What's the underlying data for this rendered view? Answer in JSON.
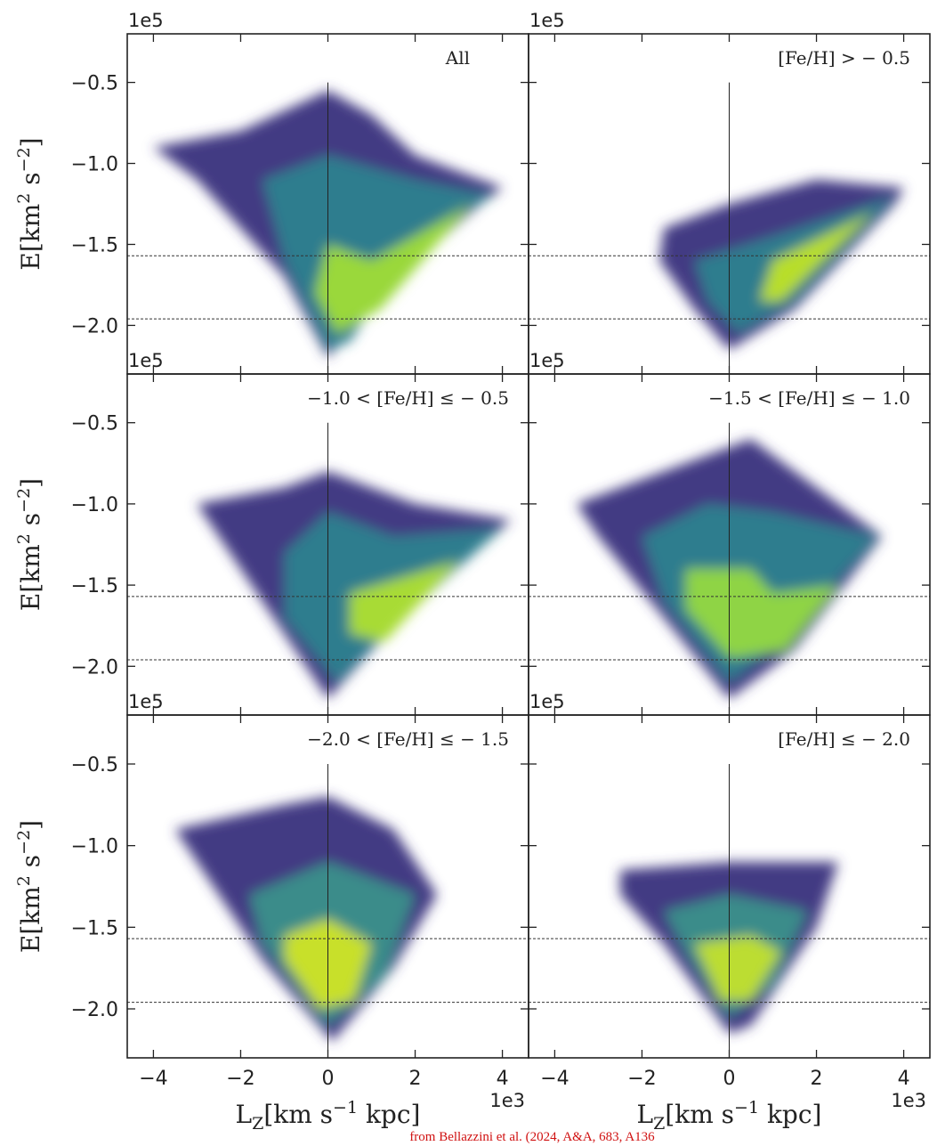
{
  "chart_data": [
    {
      "type": "heatmap",
      "label": "All",
      "y_offset": "1e5",
      "ylabel": {
        "main": "E[km",
        "sup1": "2",
        "mid": " s",
        "sup2": "−2",
        "end": "]"
      },
      "xlim": [
        -4.6,
        4.6
      ],
      "ylim": [
        -2.3,
        -0.2
      ],
      "xticks": [
        -4,
        -2,
        0,
        2,
        4
      ],
      "yticks": [
        -0.5,
        -1,
        -1.5,
        -2
      ],
      "yticklabels": [
        "−0.5",
        "−1.0",
        "−1.5",
        "−2.0"
      ],
      "vline": 0,
      "hlines": [
        -1.57,
        -1.96
      ],
      "regions": [
        {
          "color": "#433a83",
          "points": [
            [
              -4,
              -0.9
            ],
            [
              -2,
              -0.8
            ],
            [
              0,
              -0.55
            ],
            [
              1,
              -0.7
            ],
            [
              2,
              -0.95
            ],
            [
              4,
              -1.15
            ],
            [
              3.5,
              -1.25
            ],
            [
              1,
              -1.85
            ],
            [
              0,
              -2.2
            ],
            [
              -1,
              -1.7
            ],
            [
              -3,
              -1.1
            ]
          ]
        },
        {
          "color": "#2e7d8e",
          "points": [
            [
              -1.5,
              -1.1
            ],
            [
              0,
              -0.95
            ],
            [
              2,
              -1.1
            ],
            [
              3.8,
              -1.2
            ],
            [
              2,
              -1.45
            ],
            [
              0.5,
              -2.1
            ],
            [
              0,
              -2.15
            ],
            [
              -1,
              -1.6
            ]
          ]
        },
        {
          "color": "#9ad83a",
          "points": [
            [
              0,
              -1.5
            ],
            [
              1,
              -1.6
            ],
            [
              3.3,
              -1.25
            ],
            [
              1.2,
              -1.9
            ],
            [
              0.2,
              -2.05
            ],
            [
              -0.3,
              -1.8
            ]
          ]
        }
      ]
    },
    {
      "type": "heatmap",
      "label": "[Fe/H] > − 0.5",
      "y_offset": "1e5",
      "xlim": [
        -4.6,
        4.6
      ],
      "ylim": [
        -2.3,
        -0.2
      ],
      "xticks": [
        -4,
        -2,
        0,
        2,
        4
      ],
      "yticks": [
        -0.5,
        -1,
        -1.5,
        -2
      ],
      "vline": 0,
      "hlines": [
        -1.57,
        -1.96
      ],
      "regions": [
        {
          "color": "#433a83",
          "points": [
            [
              -1.5,
              -1.4
            ],
            [
              0,
              -1.25
            ],
            [
              2,
              -1.1
            ],
            [
              4,
              -1.15
            ],
            [
              3.8,
              -1.25
            ],
            [
              1.5,
              -1.9
            ],
            [
              0,
              -2.15
            ],
            [
              -0.8,
              -1.9
            ],
            [
              -1.6,
              -1.6
            ]
          ]
        },
        {
          "color": "#2e7d8e",
          "points": [
            [
              -0.8,
              -1.6
            ],
            [
              1,
              -1.45
            ],
            [
              3.8,
              -1.2
            ],
            [
              1.5,
              -1.85
            ],
            [
              0.2,
              -2.05
            ],
            [
              -0.5,
              -1.85
            ]
          ]
        },
        {
          "color": "#b8de29",
          "points": [
            [
              1,
              -1.6
            ],
            [
              3.3,
              -1.3
            ],
            [
              1.2,
              -1.85
            ],
            [
              0.7,
              -1.85
            ]
          ]
        }
      ]
    },
    {
      "type": "heatmap",
      "label": "−1.0 < [Fe/H] ≤ − 0.5",
      "y_offset": "1e5",
      "ylabel": {
        "main": "E[km",
        "sup1": "2",
        "mid": " s",
        "sup2": "−2",
        "end": "]"
      },
      "xlim": [
        -4.6,
        4.6
      ],
      "ylim": [
        -2.3,
        -0.2
      ],
      "xticks": [
        -4,
        -2,
        0,
        2,
        4
      ],
      "yticks": [
        -0.5,
        -1,
        -1.5,
        -2
      ],
      "yticklabels": [
        "−0.5",
        "−1.0",
        "−1.5",
        "−2.0"
      ],
      "vline": 0,
      "hlines": [
        -1.57,
        -1.96
      ],
      "regions": [
        {
          "color": "#433a83",
          "points": [
            [
              -3,
              -1.0
            ],
            [
              -1,
              -0.9
            ],
            [
              0,
              -0.8
            ],
            [
              2,
              -1.0
            ],
            [
              4.2,
              -1.1
            ],
            [
              3.5,
              -1.25
            ],
            [
              1,
              -1.9
            ],
            [
              0,
              -2.2
            ],
            [
              -1.5,
              -1.6
            ],
            [
              -2,
              -1.4
            ]
          ]
        },
        {
          "color": "#2e7d8e",
          "points": [
            [
              -1,
              -1.3
            ],
            [
              0,
              -1.05
            ],
            [
              1.5,
              -1.2
            ],
            [
              4,
              -1.15
            ],
            [
              1.5,
              -1.75
            ],
            [
              0.2,
              -2.1
            ],
            [
              -1,
              -1.7
            ]
          ]
        },
        {
          "color": "#a8db34",
          "points": [
            [
              0.5,
              -1.55
            ],
            [
              3,
              -1.35
            ],
            [
              1.3,
              -1.85
            ],
            [
              0.5,
              -1.8
            ]
          ]
        }
      ]
    },
    {
      "type": "heatmap",
      "label": "−1.5 < [Fe/H] ≤ − 1.0",
      "y_offset": "1e5",
      "xlim": [
        -4.6,
        4.6
      ],
      "ylim": [
        -2.3,
        -0.2
      ],
      "xticks": [
        -4,
        -2,
        0,
        2,
        4
      ],
      "yticks": [
        -0.5,
        -1,
        -1.5,
        -2
      ],
      "vline": 0,
      "hlines": [
        -1.57,
        -1.96
      ],
      "regions": [
        {
          "color": "#433a83",
          "points": [
            [
              -3.5,
              -1.0
            ],
            [
              -1,
              -0.75
            ],
            [
              0.5,
              -0.6
            ],
            [
              2,
              -0.9
            ],
            [
              3.5,
              -1.2
            ],
            [
              1.5,
              -1.9
            ],
            [
              0,
              -2.2
            ],
            [
              -1.8,
              -1.6
            ],
            [
              -3,
              -1.2
            ]
          ]
        },
        {
          "color": "#2e7d8e",
          "points": [
            [
              -2,
              -1.2
            ],
            [
              -0.5,
              -1.0
            ],
            [
              1,
              -1.05
            ],
            [
              3.4,
              -1.2
            ],
            [
              1.2,
              -1.85
            ],
            [
              0,
              -2.1
            ],
            [
              -1.5,
              -1.6
            ]
          ]
        },
        {
          "color": "#8fd444",
          "points": [
            [
              -1,
              -1.4
            ],
            [
              0.5,
              -1.4
            ],
            [
              1,
              -1.55
            ],
            [
              2.5,
              -1.5
            ],
            [
              1.3,
              -1.9
            ],
            [
              0,
              -1.95
            ],
            [
              -1,
              -1.65
            ]
          ]
        }
      ]
    },
    {
      "type": "heatmap",
      "label": "−2.0 < [Fe/H] ≤ − 1.5",
      "y_offset": "1e5",
      "x_offset": "1e3",
      "ylabel": {
        "main": "E[km",
        "sup1": "2",
        "mid": " s",
        "sup2": "−2",
        "end": "]"
      },
      "xlabel": {
        "main": "L",
        "sub": "Z",
        "rest": "[km s",
        "sup": "−1",
        "end": " kpc]"
      },
      "xlim": [
        -4.6,
        4.6
      ],
      "ylim": [
        -2.3,
        -0.2
      ],
      "xticks": [
        -4,
        -2,
        0,
        2,
        4
      ],
      "yticks": [
        -0.5,
        -1,
        -1.5,
        -2
      ],
      "xticklabels": [
        "−4",
        "−2",
        "0",
        "2",
        "4"
      ],
      "yticklabels": [
        "−0.5",
        "−1.0",
        "−1.5",
        "−2.0"
      ],
      "vline": 0,
      "hlines": [
        -1.57,
        -1.96
      ],
      "regions": [
        {
          "color": "#433a83",
          "points": [
            [
              -3.5,
              -0.9
            ],
            [
              -1,
              -0.75
            ],
            [
              0,
              -0.7
            ],
            [
              1.5,
              -0.9
            ],
            [
              2.5,
              -1.3
            ],
            [
              1.5,
              -1.75
            ],
            [
              0.1,
              -2.2
            ],
            [
              -1.5,
              -1.7
            ],
            [
              -3,
              -1.1
            ]
          ]
        },
        {
          "color": "#3b8c8a",
          "points": [
            [
              -1.8,
              -1.3
            ],
            [
              0,
              -1.1
            ],
            [
              2,
              -1.3
            ],
            [
              1.3,
              -1.8
            ],
            [
              0,
              -2.1
            ],
            [
              -1.5,
              -1.6
            ]
          ]
        },
        {
          "color": "#c8e02a",
          "points": [
            [
              -1,
              -1.55
            ],
            [
              0,
              -1.45
            ],
            [
              1,
              -1.6
            ],
            [
              0.6,
              -1.95
            ],
            [
              -0.2,
              -2.0
            ],
            [
              -1,
              -1.7
            ]
          ]
        }
      ]
    },
    {
      "type": "heatmap",
      "label": "[Fe/H] ≤ − 2.0",
      "y_offset": "1e5",
      "x_offset": "1e3",
      "xlabel": {
        "main": "L",
        "sub": "Z",
        "rest": "[km s",
        "sup": "−1",
        "end": " kpc]"
      },
      "xlim": [
        -4.6,
        4.6
      ],
      "ylim": [
        -2.3,
        -0.2
      ],
      "xticks": [
        -4,
        -2,
        0,
        2,
        4
      ],
      "yticks": [
        -0.5,
        -1,
        -1.5,
        -2
      ],
      "xticklabels": [
        "−4",
        "−2",
        "0",
        "2",
        "4"
      ],
      "vline": 0,
      "hlines": [
        -1.57,
        -1.96
      ],
      "regions": [
        {
          "color": "#433a83",
          "points": [
            [
              -2.5,
              -1.15
            ],
            [
              0,
              -1.1
            ],
            [
              2.5,
              -1.1
            ],
            [
              2,
              -1.5
            ],
            [
              0.5,
              -2.1
            ],
            [
              0,
              -2.15
            ],
            [
              -1.5,
              -1.6
            ],
            [
              -2.5,
              -1.3
            ]
          ]
        },
        {
          "color": "#3b8c8a",
          "points": [
            [
              -1.5,
              -1.4
            ],
            [
              0,
              -1.3
            ],
            [
              1.8,
              -1.4
            ],
            [
              1,
              -1.85
            ],
            [
              0,
              -2.05
            ],
            [
              -1,
              -1.65
            ]
          ]
        },
        {
          "color": "#bcdd30",
          "points": [
            [
              -0.8,
              -1.6
            ],
            [
              0.5,
              -1.55
            ],
            [
              1.2,
              -1.65
            ],
            [
              0.5,
              -1.95
            ],
            [
              -0.2,
              -1.95
            ]
          ]
        }
      ]
    }
  ],
  "credit": "from Bellazzini et al. (2024, A&A, 683, A136"
}
